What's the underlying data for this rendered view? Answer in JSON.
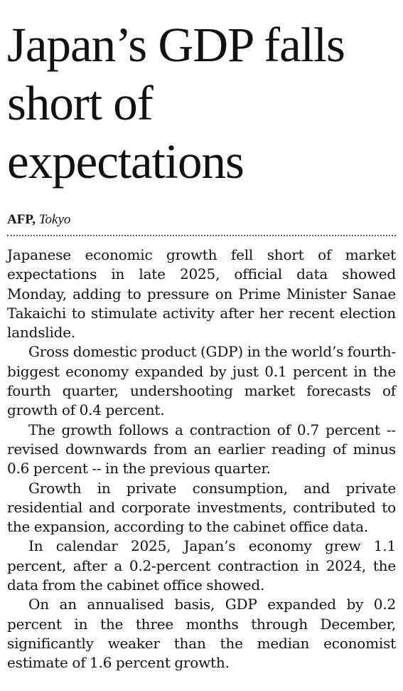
{
  "article": {
    "headline": "Japan’s GDP falls short of expectations",
    "byline": {
      "agency": "AFP,",
      "place": "Tokyo"
    },
    "paragraphs": [
      "Japanese economic growth fell short of market expectations in late 2025, official data showed Monday, adding to pressure on Prime Minister Sanae Takaichi to stimulate activity after her recent election landslide.",
      "Gross domestic product (GDP) in the world’s fourth-biggest economy expanded by just 0.1 percent in the fourth quarter, undershooting market forecasts of growth of 0.4 percent.",
      "The growth follows a contraction of 0.7 percent -- revised downwards from an earlier reading of minus 0.6 percent -- in the previous quarter.",
      "Growth in private consumption, and private residential and corporate investments, contributed to the expansion, according to the cabinet office data.",
      "In calendar 2025, Japan’s economy grew 1.1 percent, after a 0.2-percent contraction in 2024, the data from the cabinet office showed.",
      "On an annualised basis, GDP expanded by 0.2 percent in the three months through December, significantly weaker than the median economist estimate of 1.6 percent growth."
    ]
  }
}
